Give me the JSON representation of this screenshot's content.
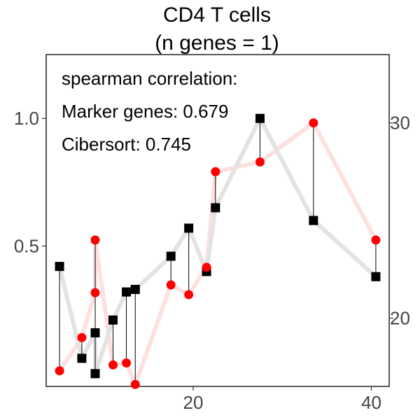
{
  "chart_data": {
    "type": "line",
    "title": "CD4 T cells",
    "subtitle": "(n genes = 1)",
    "xlabel": "",
    "ylabel": "",
    "y2label": "",
    "xlim": [
      3.5,
      42
    ],
    "ylim": [
      -0.05,
      1.25
    ],
    "y2lim": [
      16.5,
      33.5
    ],
    "x_ticks": [
      20,
      40
    ],
    "y_ticks": [
      0.5,
      1.0
    ],
    "y2_ticks": [
      20,
      30
    ],
    "x_tick_labels": [
      "20",
      "40"
    ],
    "y_tick_labels": [
      "0.5",
      "1.0"
    ],
    "y2_tick_labels": [
      "20",
      "30"
    ],
    "annotations": [
      "spearman correlation:",
      "Marker genes: 0.679",
      "Cibersort: 0.745"
    ],
    "grid": false,
    "series": [
      {
        "axis": "left",
        "marker": "square",
        "color": "#000000",
        "line_color": "#e3e3e3",
        "x": [
          5,
          7.5,
          9,
          9,
          11,
          12.5,
          13.5,
          17.5,
          19.5,
          21.5,
          22.5,
          27.5,
          33.5,
          40.5
        ],
        "values": [
          0.42,
          0.06,
          0.16,
          0.0,
          0.21,
          0.32,
          0.33,
          0.46,
          0.57,
          0.4,
          0.65,
          1.0,
          0.6,
          0.38
        ]
      },
      {
        "axis": "right",
        "marker": "circle",
        "color": "#ff0000",
        "line_color": "#ffe0e0",
        "x": [
          5,
          7.5,
          9,
          9,
          11,
          12.5,
          13.5,
          17.5,
          19.5,
          21.5,
          22.5,
          27.5,
          33.5,
          40.5
        ],
        "values": [
          17.3,
          19.0,
          21.3,
          24.0,
          17.6,
          17.7,
          16.6,
          21.7,
          21.2,
          22.6,
          27.5,
          28.0,
          30.0,
          24.0
        ]
      }
    ]
  }
}
